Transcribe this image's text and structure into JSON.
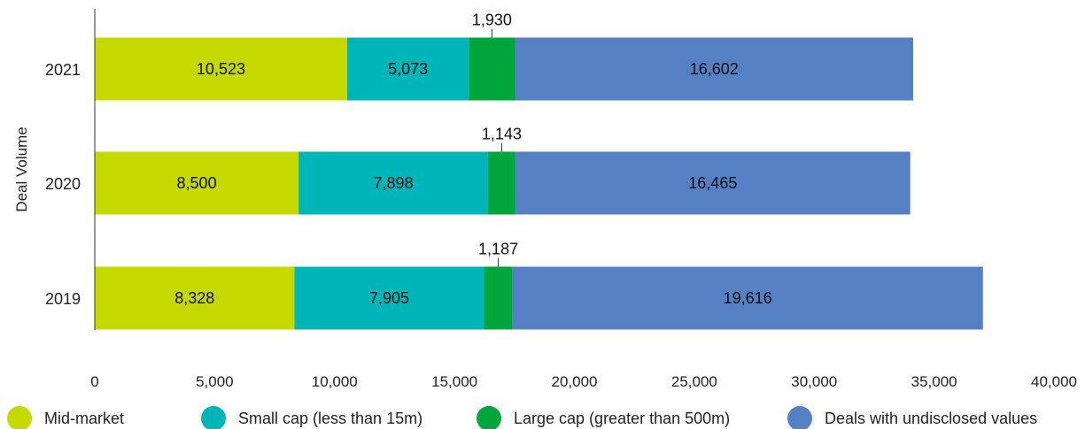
{
  "chart_data": {
    "type": "bar",
    "orientation": "horizontal",
    "stacked": true,
    "title": "",
    "ylabel": "Deal Volume",
    "xlabel": "",
    "categories": [
      "2021",
      "2020",
      "2019"
    ],
    "xlim": [
      0,
      40000
    ],
    "xticks": [
      0,
      5000,
      10000,
      15000,
      20000,
      25000,
      30000,
      35000,
      40000
    ],
    "xtick_labels": [
      "0",
      "5,000",
      "10,000",
      "15,000",
      "20,000",
      "25,000",
      "30,000",
      "35,000",
      "40,000"
    ],
    "grid": false,
    "legend_position": "bottom",
    "series": [
      {
        "name": "Mid-market",
        "color": "#c5d800",
        "values": [
          10523,
          8500,
          8328
        ],
        "labels": [
          "10,523",
          "8,500",
          "8,328"
        ]
      },
      {
        "name": "Small cap (less than 15m)",
        "color": "#00b5b8",
        "values": [
          5073,
          7898,
          7905
        ],
        "labels": [
          "5,073",
          "7,898",
          "7,905"
        ]
      },
      {
        "name": "Large cap (greater than 500m)",
        "color": "#00a63b",
        "values": [
          1930,
          1143,
          1187
        ],
        "labels": [
          "1,930",
          "1,143",
          "1,187"
        ],
        "label_position": "above"
      },
      {
        "name": "Deals with undisclosed values",
        "color": "#5580c4",
        "values": [
          16602,
          16465,
          19616
        ],
        "labels": [
          "16,602",
          "16,465",
          "19,616"
        ]
      }
    ]
  }
}
